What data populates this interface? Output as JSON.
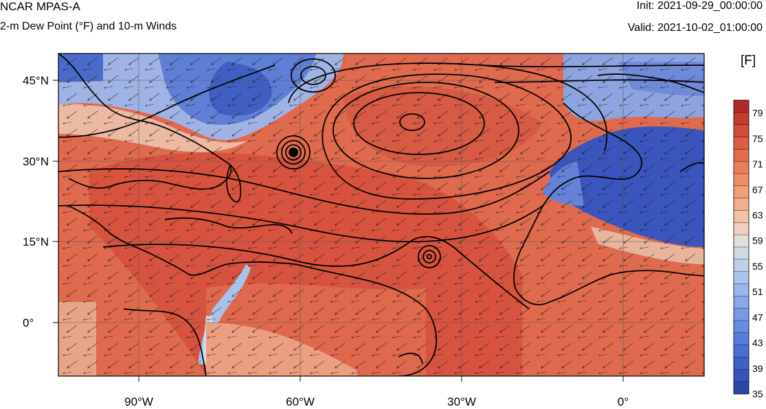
{
  "header": {
    "model": "NCAR MPAS-A",
    "field": "2-m Dew Point (°F) and 10-m Winds",
    "init": "Init: 2021-09-29_00:00:00",
    "valid": "Valid: 2021-10-02_01:00:00"
  },
  "colorbar": {
    "units": "[F]",
    "labels": [
      "79",
      "75",
      "71",
      "67",
      "63",
      "59",
      "55",
      "51",
      "47",
      "43",
      "39",
      "35"
    ],
    "min": 35,
    "max": 81,
    "step": 2,
    "colors_low_to_high": [
      "#2c46a8",
      "#3553b8",
      "#3f60c6",
      "#4a6fd2",
      "#577ddb",
      "#668be2",
      "#779ae7",
      "#89a8ea",
      "#9bb6ec",
      "#adc3ec",
      "#bfcfea",
      "#d0d9e6",
      "#e3e0dc",
      "#eed0bd",
      "#f2c0a3",
      "#f3af8d",
      "#f1a07a",
      "#ee8f69",
      "#e97e5b",
      "#e26d4e",
      "#da5c43",
      "#d04b39",
      "#c43a30",
      "#b4262a"
    ]
  },
  "map": {
    "lat_labels": [
      "45°N",
      "30°N",
      "15°N",
      "0°"
    ],
    "lon_labels": [
      "90°W",
      "60°W",
      "30°W",
      "0°"
    ],
    "projection": "cylindrical equidistant",
    "extent_deg": {
      "lon_min": -105.5,
      "lon_max": 15,
      "lat_min": -10,
      "lat_max": 50
    }
  }
}
